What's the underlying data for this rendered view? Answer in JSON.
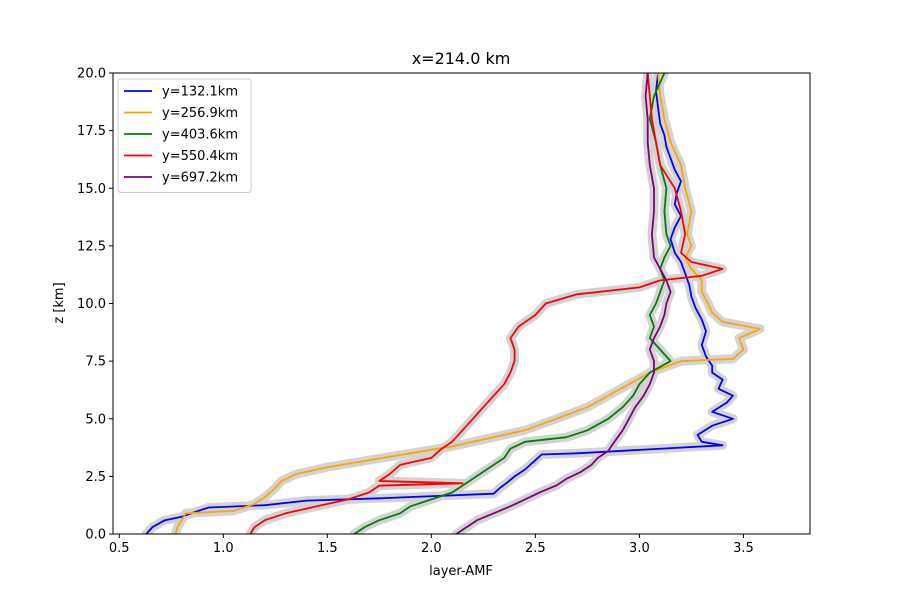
{
  "chart_data": {
    "type": "line",
    "title": "x=214.0 km",
    "xlabel": "layer-AMF",
    "ylabel": "z [km]",
    "xlim": [
      0.47,
      3.82
    ],
    "ylim": [
      0,
      20
    ],
    "xticks": [
      0.5,
      1.0,
      1.5,
      2.0,
      2.5,
      3.0,
      3.5
    ],
    "xtick_labels": [
      "0.5",
      "1.0",
      "1.5",
      "2.0",
      "2.5",
      "3.0",
      "3.5"
    ],
    "yticks": [
      0,
      2.5,
      5,
      7.5,
      10,
      12.5,
      15,
      17.5,
      20
    ],
    "ytick_labels": [
      "0.0",
      "2.5",
      "5.0",
      "7.5",
      "10.0",
      "12.5",
      "15.0",
      "17.5",
      "20.0"
    ],
    "legend_position": "upper-left",
    "band_color": "#d3d3d3",
    "series": [
      {
        "name": "y=132.1km",
        "color": "#0000ff",
        "points": [
          [
            0.63,
            0
          ],
          [
            0.66,
            0.3
          ],
          [
            0.72,
            0.6
          ],
          [
            0.8,
            0.75
          ],
          [
            0.88,
            1.0
          ],
          [
            0.93,
            1.15
          ],
          [
            1.2,
            1.25
          ],
          [
            1.4,
            1.45
          ],
          [
            1.75,
            1.55
          ],
          [
            2.3,
            1.75
          ],
          [
            2.33,
            2.0
          ],
          [
            2.36,
            2.2
          ],
          [
            2.4,
            2.5
          ],
          [
            2.45,
            2.8
          ],
          [
            2.5,
            3.2
          ],
          [
            2.53,
            3.45
          ],
          [
            2.7,
            3.5
          ],
          [
            3.4,
            3.85
          ],
          [
            3.3,
            4.0
          ],
          [
            3.28,
            4.3
          ],
          [
            3.35,
            4.7
          ],
          [
            3.45,
            5.0
          ],
          [
            3.35,
            5.3
          ],
          [
            3.42,
            5.7
          ],
          [
            3.45,
            6.0
          ],
          [
            3.38,
            6.3
          ],
          [
            3.4,
            6.7
          ],
          [
            3.35,
            7.0
          ],
          [
            3.35,
            7.3
          ],
          [
            3.32,
            7.7
          ],
          [
            3.3,
            8.2
          ],
          [
            3.32,
            8.8
          ],
          [
            3.3,
            9.3
          ],
          [
            3.27,
            9.8
          ],
          [
            3.25,
            10.3
          ],
          [
            3.24,
            10.8
          ],
          [
            3.22,
            11.3
          ],
          [
            3.2,
            11.8
          ],
          [
            3.17,
            12.2
          ],
          [
            3.15,
            12.8
          ],
          [
            3.17,
            13.3
          ],
          [
            3.2,
            13.8
          ],
          [
            3.17,
            14.3
          ],
          [
            3.18,
            14.8
          ],
          [
            3.2,
            15.3
          ],
          [
            3.17,
            15.8
          ],
          [
            3.15,
            16.3
          ],
          [
            3.13,
            16.8
          ],
          [
            3.12,
            17.3
          ],
          [
            3.1,
            17.8
          ],
          [
            3.09,
            18.5
          ],
          [
            3.08,
            19.2
          ],
          [
            3.09,
            20.0
          ]
        ]
      },
      {
        "name": "y=256.9km",
        "color": "#ffa500",
        "points": [
          [
            0.77,
            0
          ],
          [
            0.78,
            0.3
          ],
          [
            0.8,
            0.6
          ],
          [
            0.82,
            0.9
          ],
          [
            1.05,
            1.0
          ],
          [
            1.15,
            1.3
          ],
          [
            1.2,
            1.6
          ],
          [
            1.25,
            2.0
          ],
          [
            1.28,
            2.3
          ],
          [
            1.35,
            2.6
          ],
          [
            1.5,
            2.9
          ],
          [
            1.7,
            3.2
          ],
          [
            1.9,
            3.5
          ],
          [
            2.1,
            3.8
          ],
          [
            2.3,
            4.2
          ],
          [
            2.45,
            4.5
          ],
          [
            2.6,
            5.0
          ],
          [
            2.75,
            5.5
          ],
          [
            2.85,
            6.0
          ],
          [
            2.95,
            6.5
          ],
          [
            3.05,
            7.0
          ],
          [
            3.2,
            7.5
          ],
          [
            3.45,
            7.6
          ],
          [
            3.5,
            8.0
          ],
          [
            3.48,
            8.5
          ],
          [
            3.58,
            8.9
          ],
          [
            3.4,
            9.2
          ],
          [
            3.35,
            9.6
          ],
          [
            3.33,
            10.0
          ],
          [
            3.3,
            10.5
          ],
          [
            3.3,
            11.0
          ],
          [
            3.25,
            11.5
          ],
          [
            3.22,
            12.0
          ],
          [
            3.25,
            12.5
          ],
          [
            3.23,
            13.0
          ],
          [
            3.25,
            14.0
          ],
          [
            3.22,
            15.0
          ],
          [
            3.2,
            16.0
          ],
          [
            3.15,
            17.0
          ],
          [
            3.12,
            18.0
          ],
          [
            3.1,
            19.0
          ],
          [
            3.09,
            20.0
          ]
        ]
      },
      {
        "name": "y=403.6km",
        "color": "#008000",
        "points": [
          [
            1.63,
            0
          ],
          [
            1.68,
            0.3
          ],
          [
            1.75,
            0.6
          ],
          [
            1.85,
            0.9
          ],
          [
            1.9,
            1.2
          ],
          [
            2.0,
            1.5
          ],
          [
            2.1,
            1.8
          ],
          [
            2.15,
            2.1
          ],
          [
            2.2,
            2.4
          ],
          [
            2.25,
            2.7
          ],
          [
            2.3,
            3.0
          ],
          [
            2.35,
            3.3
          ],
          [
            2.38,
            3.7
          ],
          [
            2.45,
            4.0
          ],
          [
            2.65,
            4.2
          ],
          [
            2.75,
            4.5
          ],
          [
            2.85,
            5.0
          ],
          [
            2.92,
            5.5
          ],
          [
            2.97,
            6.0
          ],
          [
            3.0,
            6.5
          ],
          [
            3.05,
            7.0
          ],
          [
            3.15,
            7.5
          ],
          [
            3.1,
            8.0
          ],
          [
            3.05,
            8.5
          ],
          [
            3.07,
            9.0
          ],
          [
            3.05,
            9.5
          ],
          [
            3.08,
            10.0
          ],
          [
            3.1,
            10.5
          ],
          [
            3.12,
            11.0
          ],
          [
            3.1,
            11.5
          ],
          [
            3.12,
            12.0
          ],
          [
            3.15,
            12.5
          ],
          [
            3.13,
            13.0
          ],
          [
            3.12,
            14.0
          ],
          [
            3.13,
            15.0
          ],
          [
            3.1,
            16.0
          ],
          [
            3.08,
            17.0
          ],
          [
            3.05,
            18.0
          ],
          [
            3.07,
            19.0
          ],
          [
            3.12,
            20.0
          ]
        ]
      },
      {
        "name": "y=550.4km",
        "color": "#ff0000",
        "points": [
          [
            1.13,
            0
          ],
          [
            1.15,
            0.3
          ],
          [
            1.2,
            0.6
          ],
          [
            1.3,
            0.9
          ],
          [
            1.45,
            1.2
          ],
          [
            1.6,
            1.5
          ],
          [
            1.7,
            1.8
          ],
          [
            1.75,
            2.1
          ],
          [
            2.15,
            2.2
          ],
          [
            1.75,
            2.3
          ],
          [
            1.8,
            2.6
          ],
          [
            1.85,
            3.0
          ],
          [
            2.0,
            3.3
          ],
          [
            2.05,
            3.7
          ],
          [
            2.1,
            4.0
          ],
          [
            2.15,
            4.5
          ],
          [
            2.2,
            5.0
          ],
          [
            2.25,
            5.5
          ],
          [
            2.3,
            6.0
          ],
          [
            2.35,
            6.5
          ],
          [
            2.38,
            7.0
          ],
          [
            2.4,
            7.5
          ],
          [
            2.4,
            8.0
          ],
          [
            2.38,
            8.5
          ],
          [
            2.42,
            9.0
          ],
          [
            2.5,
            9.5
          ],
          [
            2.55,
            10.0
          ],
          [
            2.7,
            10.4
          ],
          [
            3.0,
            10.7
          ],
          [
            3.1,
            11.0
          ],
          [
            3.3,
            11.2
          ],
          [
            3.4,
            11.5
          ],
          [
            3.25,
            11.8
          ],
          [
            3.2,
            12.2
          ],
          [
            3.22,
            13.0
          ],
          [
            3.2,
            14.0
          ],
          [
            3.17,
            15.0
          ],
          [
            3.1,
            16.0
          ],
          [
            3.08,
            17.0
          ],
          [
            3.06,
            18.0
          ],
          [
            3.05,
            19.0
          ],
          [
            3.04,
            20.0
          ]
        ]
      },
      {
        "name": "y=697.2km",
        "color": "#800080",
        "points": [
          [
            2.12,
            0
          ],
          [
            2.17,
            0.3
          ],
          [
            2.22,
            0.6
          ],
          [
            2.3,
            0.9
          ],
          [
            2.38,
            1.2
          ],
          [
            2.45,
            1.5
          ],
          [
            2.52,
            1.8
          ],
          [
            2.6,
            2.1
          ],
          [
            2.65,
            2.4
          ],
          [
            2.72,
            2.7
          ],
          [
            2.77,
            3.0
          ],
          [
            2.8,
            3.3
          ],
          [
            2.85,
            3.6
          ],
          [
            2.88,
            4.0
          ],
          [
            2.92,
            4.5
          ],
          [
            2.95,
            5.0
          ],
          [
            2.98,
            5.5
          ],
          [
            3.02,
            6.0
          ],
          [
            3.05,
            6.5
          ],
          [
            3.07,
            7.0
          ],
          [
            3.07,
            7.5
          ],
          [
            3.05,
            8.0
          ],
          [
            3.07,
            8.5
          ],
          [
            3.1,
            9.0
          ],
          [
            3.12,
            9.5
          ],
          [
            3.13,
            10.0
          ],
          [
            3.15,
            10.5
          ],
          [
            3.13,
            11.0
          ],
          [
            3.1,
            11.5
          ],
          [
            3.07,
            12.0
          ],
          [
            3.06,
            13.0
          ],
          [
            3.07,
            14.0
          ],
          [
            3.07,
            15.0
          ],
          [
            3.05,
            16.0
          ],
          [
            3.04,
            17.0
          ],
          [
            3.04,
            18.0
          ],
          [
            3.03,
            19.0
          ],
          [
            3.04,
            20.0
          ]
        ]
      }
    ]
  }
}
